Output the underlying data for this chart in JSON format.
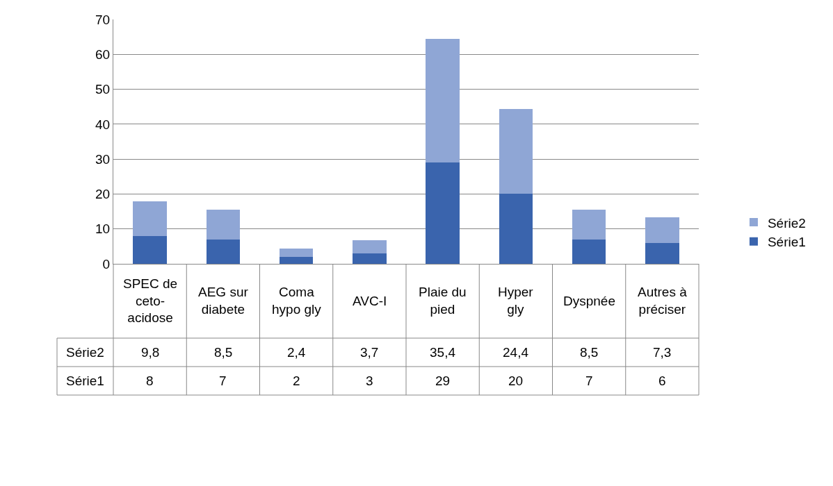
{
  "chart_data": {
    "type": "bar",
    "stacked": true,
    "categories": [
      "SPEC de ceto-acidose",
      "AEG sur diabete",
      "Coma hypo gly",
      "AVC-I",
      "Plaie du pied",
      "Hyper gly",
      "Dyspnée",
      "Autres à préciser"
    ],
    "series": [
      {
        "name": "Série1",
        "color": "#3a64ad",
        "values": [
          8,
          7,
          2,
          3,
          29,
          20,
          7,
          6
        ],
        "value_labels": [
          "8",
          "7",
          "2",
          "3",
          "29",
          "20",
          "7",
          "6"
        ]
      },
      {
        "name": "Série2",
        "color": "#8fa6d5",
        "values": [
          9.8,
          8.5,
          2.4,
          3.7,
          35.4,
          24.4,
          8.5,
          7.3
        ],
        "value_labels": [
          "9,8",
          "8,5",
          "2,4",
          "3,7",
          "35,4",
          "24,4",
          "8,5",
          "7,3"
        ]
      }
    ],
    "ylim": [
      0,
      70
    ],
    "yticks": [
      0,
      10,
      20,
      30,
      40,
      50,
      60,
      70
    ],
    "grid": "y",
    "legend": "right"
  }
}
